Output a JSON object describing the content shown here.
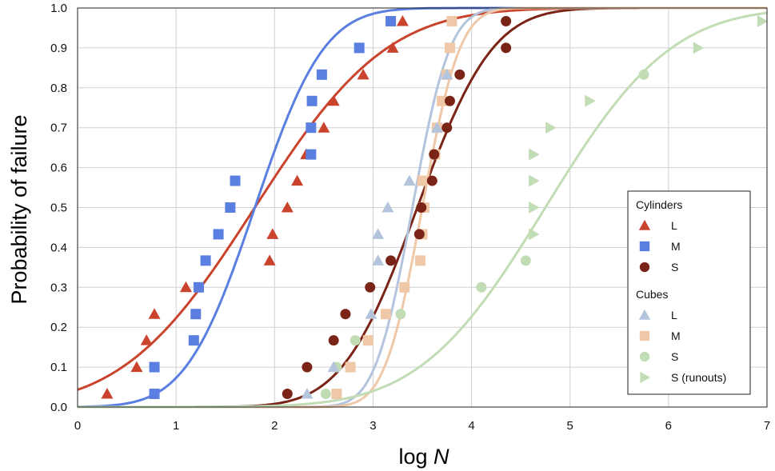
{
  "chart_data": {
    "type": "scatter",
    "xlabel": "log",
    "xlabel_var": "N",
    "ylabel": "Probability of failure",
    "xlim": [
      0,
      7
    ],
    "ylim": [
      0,
      1
    ],
    "x_ticks": [
      "0",
      "1",
      "2",
      "3",
      "4",
      "5",
      "6",
      "7"
    ],
    "y_ticks": [
      "0.0",
      "0.1",
      "0.2",
      "0.3",
      "0.4",
      "0.5",
      "0.6",
      "0.7",
      "0.8",
      "0.9",
      "1.0"
    ],
    "grid": true,
    "legend": {
      "placement": "lower-right",
      "groups": [
        {
          "title": "Cylinders",
          "entries": [
            {
              "label": "L",
              "series": 0
            },
            {
              "label": "M",
              "series": 1
            },
            {
              "label": "S",
              "series": 2
            }
          ]
        },
        {
          "title": "Cubes",
          "entries": [
            {
              "label": "L",
              "series": 3
            },
            {
              "label": "M",
              "series": 4
            },
            {
              "label": "S",
              "series": 5
            },
            {
              "label": "S  (runouts)",
              "series": 6
            }
          ]
        }
      ]
    },
    "series": [
      {
        "name": "L",
        "group": "Cylinders",
        "marker": "triangle-up",
        "color": "#c9432d",
        "points": [
          [
            0.3,
            0.033
          ],
          [
            0.6,
            0.1
          ],
          [
            0.7,
            0.167
          ],
          [
            0.78,
            0.233
          ],
          [
            1.1,
            0.3
          ],
          [
            1.95,
            0.367
          ],
          [
            1.98,
            0.433
          ],
          [
            2.13,
            0.5
          ],
          [
            2.23,
            0.567
          ],
          [
            2.32,
            0.633
          ],
          [
            2.5,
            0.7
          ],
          [
            2.6,
            0.767
          ],
          [
            2.9,
            0.833
          ],
          [
            3.2,
            0.9
          ],
          [
            3.3,
            0.967
          ]
        ]
      },
      {
        "name": "M",
        "group": "Cylinders",
        "marker": "square",
        "color": "#5b7fe0",
        "points": [
          [
            0.78,
            0.033
          ],
          [
            0.78,
            0.1
          ],
          [
            1.18,
            0.167
          ],
          [
            1.2,
            0.233
          ],
          [
            1.23,
            0.3
          ],
          [
            1.3,
            0.367
          ],
          [
            1.43,
            0.433
          ],
          [
            1.55,
            0.5
          ],
          [
            1.6,
            0.567
          ],
          [
            2.37,
            0.633
          ],
          [
            2.37,
            0.7
          ],
          [
            2.38,
            0.767
          ],
          [
            2.48,
            0.833
          ],
          [
            2.86,
            0.9
          ],
          [
            3.18,
            0.967
          ]
        ]
      },
      {
        "name": "S",
        "group": "Cylinders",
        "marker": "circle",
        "color": "#7a2418",
        "points": [
          [
            2.13,
            0.033
          ],
          [
            2.33,
            0.1
          ],
          [
            2.6,
            0.167
          ],
          [
            2.72,
            0.233
          ],
          [
            2.97,
            0.3
          ],
          [
            3.18,
            0.367
          ],
          [
            3.47,
            0.433
          ],
          [
            3.49,
            0.5
          ],
          [
            3.6,
            0.567
          ],
          [
            3.62,
            0.633
          ],
          [
            3.75,
            0.7
          ],
          [
            3.78,
            0.767
          ],
          [
            3.88,
            0.833
          ],
          [
            4.35,
            0.9
          ],
          [
            4.35,
            0.967
          ]
        ]
      },
      {
        "name": "L",
        "group": "Cubes",
        "marker": "triangle-up",
        "color": "#b3c4dc",
        "points": [
          [
            2.33,
            0.033
          ],
          [
            2.6,
            0.1
          ],
          [
            2.98,
            0.233
          ],
          [
            3.05,
            0.367
          ],
          [
            3.05,
            0.433
          ],
          [
            3.15,
            0.5
          ],
          [
            3.37,
            0.567
          ],
          [
            3.65,
            0.7
          ],
          [
            3.75,
            0.833
          ]
        ]
      },
      {
        "name": "M",
        "group": "Cubes",
        "marker": "square",
        "color": "#efc8a8",
        "points": [
          [
            2.63,
            0.033
          ],
          [
            2.77,
            0.1
          ],
          [
            2.95,
            0.167
          ],
          [
            3.13,
            0.233
          ],
          [
            3.32,
            0.3
          ],
          [
            3.48,
            0.367
          ],
          [
            3.5,
            0.433
          ],
          [
            3.52,
            0.5
          ],
          [
            3.5,
            0.567
          ],
          [
            3.63,
            0.633
          ],
          [
            3.65,
            0.7
          ],
          [
            3.7,
            0.767
          ],
          [
            3.75,
            0.833
          ],
          [
            3.78,
            0.9
          ],
          [
            3.8,
            0.967
          ]
        ]
      },
      {
        "name": "S",
        "group": "Cubes",
        "marker": "circle",
        "color": "#c2dcb6",
        "points": [
          [
            2.52,
            0.033
          ],
          [
            2.63,
            0.1
          ],
          [
            2.82,
            0.167
          ],
          [
            3.28,
            0.233
          ],
          [
            4.1,
            0.3
          ],
          [
            4.55,
            0.367
          ],
          [
            5.75,
            0.833
          ]
        ]
      },
      {
        "name": "S  (runouts)",
        "group": "Cubes",
        "marker": "triangle-right",
        "color": "#c2dcb6",
        "points": [
          [
            4.63,
            0.433
          ],
          [
            4.63,
            0.5
          ],
          [
            4.63,
            0.567
          ],
          [
            4.63,
            0.633
          ],
          [
            4.8,
            0.7
          ],
          [
            5.2,
            0.767
          ],
          [
            6.3,
            0.9
          ],
          [
            6.95,
            0.967
          ]
        ]
      }
    ],
    "curves": [
      {
        "color": "#c9432d",
        "model": "normal-cdf",
        "mean": 1.8,
        "sd": 1.05
      },
      {
        "color": "#5b7fe0",
        "model": "normal-cdf",
        "mean": 1.8,
        "sd": 0.55
      },
      {
        "color": "#7a2418",
        "model": "normal-cdf",
        "mean": 3.45,
        "sd": 0.6
      },
      {
        "color": "#b3c4dc",
        "model": "normal-cdf",
        "mean": 3.4,
        "sd": 0.3
      },
      {
        "color": "#efc8a8",
        "model": "normal-cdf",
        "mean": 3.5,
        "sd": 0.3
      },
      {
        "color": "#c2dcb6",
        "model": "normal-cdf",
        "mean": 4.75,
        "sd": 1.0
      }
    ]
  }
}
